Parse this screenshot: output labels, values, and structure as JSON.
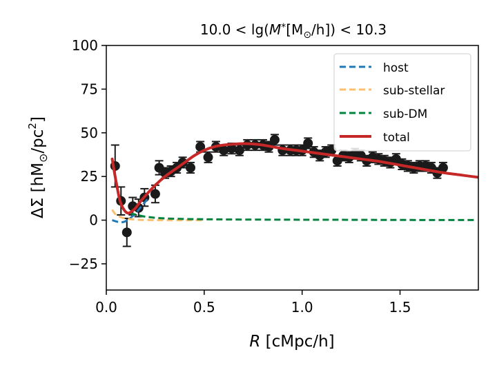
{
  "chart_data": {
    "type": "scatter",
    "title": "10.0 < lg(M*[M⊙/h]) < 10.3",
    "title_parts": [
      "10.0 < lg(",
      "M",
      "*",
      "[M",
      "⊙",
      "/h]) < 10.3"
    ],
    "xlabel": "R [cMpc/h]",
    "xlabel_parts": [
      "R",
      " [cMpc/h]"
    ],
    "ylabel": "ΔΣ [hM⊙/pc²]",
    "ylabel_parts": [
      "ΔΣ [hM",
      "⊙",
      "/pc",
      "2",
      "]"
    ],
    "xlim": [
      0.0,
      1.9
    ],
    "ylim": [
      -40,
      100
    ],
    "xticks": [
      0.0,
      0.5,
      1.0,
      1.5
    ],
    "xtick_labels": [
      "0.0",
      "0.5",
      "1.0",
      "1.5"
    ],
    "yticks": [
      -25,
      0,
      25,
      50,
      75,
      100
    ],
    "ytick_labels": [
      "−25",
      "0",
      "25",
      "50",
      "75",
      "100"
    ],
    "legend_position": "top-right",
    "legend": [
      {
        "name": "host",
        "style": "dashed",
        "color": "#1f77b4"
      },
      {
        "name": "sub-stellar",
        "style": "dashed",
        "color": "#fdbf6f"
      },
      {
        "name": "sub-DM",
        "style": "dashed",
        "color": "#00843d"
      },
      {
        "name": "total",
        "style": "solid",
        "color": "#c62828"
      }
    ],
    "observed": {
      "name": "data",
      "color": "#1a1a1a",
      "x": [
        0.045,
        0.075,
        0.105,
        0.135,
        0.165,
        0.195,
        0.25,
        0.27,
        0.3,
        0.33,
        0.36,
        0.39,
        0.43,
        0.48,
        0.52,
        0.56,
        0.6,
        0.64,
        0.68,
        0.72,
        0.76,
        0.8,
        0.83,
        0.86,
        0.9,
        0.94,
        0.97,
        1.0,
        1.03,
        1.06,
        1.09,
        1.12,
        1.15,
        1.18,
        1.21,
        1.24,
        1.27,
        1.3,
        1.33,
        1.36,
        1.39,
        1.42,
        1.45,
        1.48,
        1.51,
        1.54,
        1.57,
        1.6,
        1.63,
        1.66,
        1.69,
        1.72
      ],
      "y": [
        31,
        11,
        -7,
        8,
        7,
        13,
        15,
        30,
        27,
        28,
        30,
        33,
        30,
        42,
        36,
        42,
        40,
        41,
        40,
        43,
        43,
        43,
        42,
        46,
        40,
        40,
        40,
        40,
        44,
        39,
        37,
        39,
        40,
        34,
        37,
        36,
        38,
        37,
        34,
        36,
        35,
        34,
        33,
        35,
        32,
        31,
        30,
        31,
        31,
        30,
        27,
        30
      ],
      "yerr": [
        12,
        8,
        8,
        5,
        5,
        5,
        5,
        4,
        3,
        3,
        3,
        3,
        3,
        3,
        3,
        3,
        3,
        3,
        3,
        3,
        3,
        3,
        3,
        3,
        3,
        3,
        3,
        3,
        3,
        3,
        3,
        3,
        3,
        3,
        3,
        3,
        3,
        3,
        3,
        3,
        3,
        3,
        3,
        3,
        3,
        3,
        3,
        3,
        3,
        3,
        3,
        3
      ]
    },
    "series": [
      {
        "name": "host",
        "style": "dashed",
        "color": "#1f77b4",
        "x": [
          0.03,
          0.06,
          0.09,
          0.12,
          0.15,
          0.18,
          0.21
        ],
        "y": [
          0,
          -1,
          -1,
          1,
          4,
          8,
          12
        ]
      },
      {
        "name": "sub-stellar",
        "style": "dashed",
        "color": "#fdbf6f",
        "x": [
          0.03,
          0.05,
          0.08,
          0.11,
          0.15,
          0.2,
          0.3,
          0.5
        ],
        "y": [
          6,
          3,
          1.5,
          0.8,
          0.3,
          0.1,
          0.0,
          0.0
        ]
      },
      {
        "name": "sub-DM",
        "style": "dashed",
        "color": "#00843d",
        "x": [
          0.12,
          0.15,
          0.2,
          0.3,
          0.5,
          0.8,
          1.2,
          1.6,
          1.88
        ],
        "y": [
          4,
          3.2,
          2,
          1.0,
          0.5,
          0.3,
          0.2,
          0.1,
          0.1
        ]
      },
      {
        "name": "total",
        "style": "solid",
        "color": "#c62828",
        "x": [
          0.03,
          0.05,
          0.07,
          0.09,
          0.11,
          0.13,
          0.15,
          0.17,
          0.2,
          0.25,
          0.3,
          0.35,
          0.4,
          0.45,
          0.5,
          0.55,
          0.6,
          0.65,
          0.7,
          0.75,
          0.8,
          0.9,
          1.0,
          1.1,
          1.2,
          1.3,
          1.4,
          1.5,
          1.6,
          1.7,
          1.8,
          1.9
        ],
        "y": [
          35,
          22,
          11,
          6,
          4,
          5,
          7,
          10,
          14,
          20,
          25,
          29,
          33,
          37,
          40,
          42,
          43,
          43.5,
          43.8,
          43.6,
          43,
          41,
          39.5,
          38,
          36.5,
          35,
          33.5,
          31.5,
          29.5,
          27.5,
          26,
          24.5
        ]
      }
    ]
  }
}
